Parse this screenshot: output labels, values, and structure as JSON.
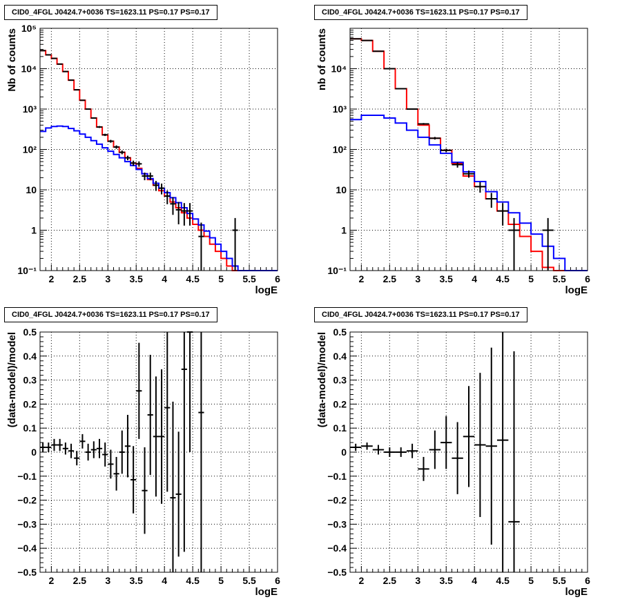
{
  "chart_data": [
    {
      "type": "line",
      "title": "CID0_4FGL J0424.7+0036 TS=1623.11 PS=0.17 PS=0.17",
      "xlabel": "logE",
      "ylabel": "Nb of counts",
      "xlim": [
        1.8,
        6
      ],
      "ylim": [
        0.1,
        100000
      ],
      "yscale": "log",
      "grid": true,
      "x_ticks": [
        "2",
        "2.5",
        "3",
        "3.5",
        "4",
        "4.5",
        "5",
        "5.5",
        "6"
      ],
      "y_ticks": [
        "10⁻¹",
        "1",
        "10",
        "10²",
        "10³",
        "10⁴",
        "10⁵"
      ],
      "bin_width": 0.1,
      "series": [
        {
          "color": "#ff0000",
          "style": "step",
          "x": [
            1.8,
            1.9,
            2.0,
            2.1,
            2.2,
            2.3,
            2.4,
            2.5,
            2.6,
            2.7,
            2.8,
            2.9,
            3.0,
            3.1,
            3.2,
            3.3,
            3.4,
            3.5,
            3.6,
            3.7,
            3.8,
            3.9,
            4.0,
            4.1,
            4.2,
            4.3,
            4.4,
            4.5,
            4.6,
            4.7,
            4.8,
            4.9,
            5.0,
            5.1,
            5.2,
            5.3,
            5.4,
            5.5,
            5.6,
            5.7,
            5.8,
            5.9
          ],
          "values": [
            28000,
            22000,
            18000,
            13000,
            8500,
            5200,
            3000,
            1650,
            1000,
            600,
            360,
            230,
            160,
            115,
            85,
            62,
            46,
            34,
            25,
            18,
            13,
            9.5,
            7,
            5,
            3.6,
            2.7,
            2.0,
            1.4,
            1.0,
            0.7,
            0.45,
            0.3,
            0.2,
            0.13,
            0.1,
            0.1,
            0.1,
            0.1,
            0.1,
            0.1,
            0.1,
            0.1
          ]
        },
        {
          "color": "#0000ff",
          "style": "step",
          "x": [
            1.8,
            1.9,
            2.0,
            2.1,
            2.2,
            2.3,
            2.4,
            2.5,
            2.6,
            2.7,
            2.8,
            2.9,
            3.0,
            3.1,
            3.2,
            3.3,
            3.4,
            3.5,
            3.6,
            3.7,
            3.8,
            3.9,
            4.0,
            4.1,
            4.2,
            4.3,
            4.4,
            4.5,
            4.6,
            4.7,
            4.8,
            4.9,
            5.0,
            5.1,
            5.2,
            5.3,
            5.4,
            5.5,
            5.6,
            5.7,
            5.8,
            5.9
          ],
          "values": [
            280,
            340,
            370,
            380,
            370,
            330,
            290,
            240,
            200,
            165,
            135,
            110,
            90,
            75,
            62,
            50,
            40,
            32,
            25,
            19,
            14.5,
            11,
            8.5,
            6.4,
            4.8,
            3.6,
            2.6,
            1.9,
            1.35,
            0.95,
            0.65,
            0.45,
            0.3,
            0.2,
            0.13,
            0.1,
            0.1,
            0.1,
            0.1,
            0.1,
            0.1,
            0.1
          ]
        },
        {
          "color": "#000000",
          "style": "errorbar",
          "x": [
            1.85,
            1.95,
            2.05,
            2.15,
            2.25,
            2.35,
            2.45,
            2.55,
            2.65,
            2.75,
            2.85,
            2.95,
            3.05,
            3.15,
            3.25,
            3.35,
            3.45,
            3.55,
            3.65,
            3.75,
            3.85,
            3.95,
            4.05,
            4.15,
            4.25,
            4.35,
            4.45,
            4.65,
            5.25
          ],
          "values": [
            28000,
            22000,
            18000,
            13000,
            8500,
            5200,
            3000,
            1650,
            1000,
            600,
            360,
            230,
            160,
            115,
            85,
            62,
            46,
            44,
            22,
            22,
            13,
            11,
            7,
            4.5,
            3.2,
            3,
            3,
            0.7,
            1
          ],
          "errors": [
            170,
            150,
            135,
            115,
            92,
            72,
            55,
            41,
            32,
            24,
            19,
            15,
            13,
            11,
            9.2,
            7.9,
            6.8,
            6.6,
            4.7,
            4.7,
            3.6,
            3.3,
            2.6,
            2.1,
            1.8,
            1.7,
            1.7,
            0.84,
            1
          ]
        }
      ]
    },
    {
      "type": "line",
      "title": "CID0_4FGL J0424.7+0036 TS=1623.11 PS=0.17 PS=0.17",
      "xlabel": "logE",
      "ylabel": "nb of counts",
      "xlim": [
        1.8,
        6
      ],
      "ylim": [
        0.1,
        100000
      ],
      "yscale": "log",
      "grid": true,
      "x_ticks": [
        "2",
        "2.5",
        "3",
        "3.5",
        "4",
        "4.5",
        "5",
        "5.5",
        "6"
      ],
      "y_ticks": [
        "10⁻¹",
        "1",
        "10",
        "10²",
        "10³",
        "10⁴"
      ],
      "bin_width": 0.2,
      "series": [
        {
          "color": "#ff0000",
          "style": "step",
          "x": [
            1.8,
            2.0,
            2.2,
            2.4,
            2.6,
            2.8,
            3.0,
            3.2,
            3.4,
            3.6,
            3.8,
            4.0,
            4.2,
            4.4,
            4.6,
            4.8,
            5.0,
            5.2,
            5.4,
            5.6,
            5.8
          ],
          "values": [
            55000,
            50000,
            27000,
            10000,
            3200,
            1000,
            400,
            190,
            95,
            45,
            22,
            12,
            6,
            3,
            1.4,
            0.7,
            0.3,
            0.12,
            0.1,
            0.1,
            0.1
          ]
        },
        {
          "color": "#0000ff",
          "style": "step",
          "x": [
            1.8,
            2.0,
            2.2,
            2.4,
            2.6,
            2.8,
            3.0,
            3.2,
            3.4,
            3.6,
            3.8,
            4.0,
            4.2,
            4.4,
            4.6,
            4.8,
            5.0,
            5.2,
            5.4,
            5.6,
            5.8
          ],
          "values": [
            550,
            700,
            700,
            600,
            450,
            300,
            200,
            130,
            80,
            48,
            28,
            16,
            9,
            5,
            2.7,
            1.5,
            0.8,
            0.4,
            0.2,
            0.1,
            0.1
          ]
        },
        {
          "color": "#000000",
          "style": "errorbar",
          "x": [
            1.9,
            2.1,
            2.3,
            2.5,
            2.7,
            2.9,
            3.1,
            3.3,
            3.5,
            3.7,
            3.9,
            4.1,
            4.3,
            4.5,
            4.7,
            5.3
          ],
          "values": [
            55000,
            50000,
            27000,
            10000,
            3200,
            1000,
            430,
            190,
            95,
            42,
            25,
            12,
            6,
            3,
            1,
            1
          ],
          "errors": [
            235,
            224,
            164,
            100,
            57,
            32,
            21,
            14,
            9.7,
            6.5,
            5,
            3.5,
            2.4,
            1.7,
            1,
            1
          ]
        }
      ]
    },
    {
      "type": "scatter",
      "title": "CID0_4FGL J0424.7+0036 TS=1623.11 PS=0.17 PS=0.17",
      "xlabel": "logE",
      "ylabel": "(data-model)/model",
      "xlim": [
        1.8,
        6
      ],
      "ylim": [
        -0.5,
        0.5
      ],
      "grid": true,
      "x_ticks": [
        "2",
        "2.5",
        "3",
        "3.5",
        "4",
        "4.5",
        "5",
        "5.5",
        "6"
      ],
      "y_ticks": [
        "−0.5",
        "−0.4",
        "−0.3",
        "−0.2",
        "−0.1",
        "0",
        "0.1",
        "0.2",
        "0.3",
        "0.4",
        "0.5"
      ],
      "bin_width": 0.1,
      "series": [
        {
          "color": "#000000",
          "style": "errorbar",
          "x": [
            1.85,
            1.95,
            2.05,
            2.15,
            2.25,
            2.35,
            2.45,
            2.55,
            2.65,
            2.75,
            2.85,
            2.95,
            3.05,
            3.15,
            3.25,
            3.35,
            3.45,
            3.55,
            3.65,
            3.75,
            3.85,
            3.95,
            4.05,
            4.15,
            4.25,
            4.35,
            4.45,
            4.65
          ],
          "values": [
            0.02,
            0.02,
            0.03,
            0.03,
            0.015,
            0.005,
            -0.025,
            0.045,
            0.0,
            0.01,
            0.015,
            -0.01,
            -0.05,
            -0.09,
            0.0,
            0.025,
            -0.115,
            0.255,
            -0.16,
            0.155,
            0.065,
            0.065,
            0.185,
            -0.19,
            -0.175,
            0.345,
            0.5,
            0.165
          ],
          "errors": [
            0.02,
            0.02,
            0.025,
            0.025,
            0.025,
            0.03,
            0.03,
            0.03,
            0.035,
            0.035,
            0.04,
            0.05,
            0.06,
            0.07,
            0.09,
            0.13,
            0.14,
            0.2,
            0.18,
            0.25,
            0.25,
            0.28,
            0.35,
            0.4,
            0.26,
            0.76,
            0.5,
            0.67
          ]
        }
      ]
    },
    {
      "type": "scatter",
      "title": "CID0_4FGL J0424.7+0036 TS=1623.11 PS=0.17 PS=0.17",
      "xlabel": "logE",
      "ylabel": "(data-model)/model",
      "xlim": [
        1.8,
        6
      ],
      "ylim": [
        -0.5,
        0.5
      ],
      "grid": true,
      "x_ticks": [
        "2",
        "2.5",
        "3",
        "3.5",
        "4",
        "4.5",
        "5",
        "5.5",
        "6"
      ],
      "y_ticks": [
        "−0.5",
        "−0.4",
        "−0.3",
        "−0.2",
        "−0.1",
        "0",
        "0.1",
        "0.2",
        "0.3",
        "0.4",
        "0.5"
      ],
      "bin_width": 0.2,
      "series": [
        {
          "color": "#000000",
          "style": "errorbar",
          "x": [
            1.9,
            2.1,
            2.3,
            2.5,
            2.7,
            2.9,
            3.1,
            3.3,
            3.5,
            3.7,
            3.9,
            4.1,
            4.3,
            4.5,
            4.7
          ],
          "values": [
            0.02,
            0.025,
            0.01,
            0.0,
            0.0,
            0.005,
            -0.07,
            0.01,
            0.04,
            -0.025,
            0.065,
            0.03,
            0.025,
            0.05,
            -0.29
          ],
          "errors": [
            0.015,
            0.015,
            0.02,
            0.02,
            0.02,
            0.03,
            0.05,
            0.08,
            0.11,
            0.15,
            0.21,
            0.3,
            0.41,
            0.58,
            0.71
          ]
        }
      ]
    }
  ]
}
